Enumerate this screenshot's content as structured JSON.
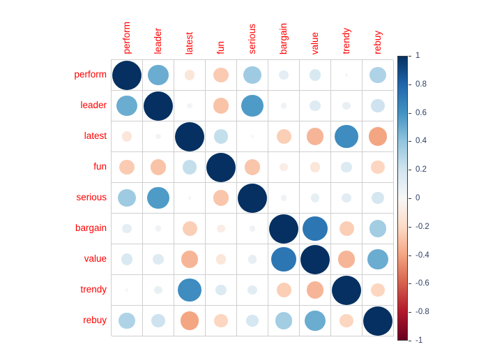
{
  "chart_data": {
    "type": "heatmap",
    "subtype": "correlation-matrix-circles",
    "title": "",
    "variables": [
      "perform",
      "leader",
      "latest",
      "fun",
      "serious",
      "bargain",
      "value",
      "trendy",
      "rebuy"
    ],
    "matrix": [
      [
        1.0,
        0.5,
        -0.12,
        -0.26,
        0.36,
        0.1,
        0.16,
        -0.01,
        0.31
      ],
      [
        0.5,
        1.0,
        0.03,
        -0.29,
        0.57,
        0.04,
        0.13,
        0.08,
        0.21
      ],
      [
        -0.12,
        0.03,
        1.0,
        0.24,
        -0.01,
        -0.25,
        -0.34,
        0.63,
        -0.4
      ],
      [
        -0.26,
        -0.29,
        0.24,
        1.0,
        -0.28,
        -0.07,
        -0.12,
        0.14,
        -0.22
      ],
      [
        0.36,
        0.57,
        -0.01,
        -0.28,
        1.0,
        0.04,
        0.09,
        0.11,
        0.18
      ],
      [
        0.1,
        0.04,
        -0.25,
        -0.07,
        0.04,
        1.0,
        0.73,
        -0.25,
        0.35
      ],
      [
        0.16,
        0.13,
        -0.34,
        -0.12,
        0.09,
        0.73,
        1.0,
        -0.34,
        0.5
      ],
      [
        -0.01,
        0.08,
        0.63,
        0.14,
        0.11,
        -0.25,
        -0.34,
        1.0,
        -0.22
      ],
      [
        0.31,
        0.21,
        -0.4,
        -0.22,
        0.18,
        0.35,
        0.5,
        -0.22,
        1.0
      ]
    ],
    "encoding": "circle area proportional to |r|, color mapped on RdBu diverging scale",
    "legend": {
      "position": "right",
      "min": -1,
      "max": 1,
      "ticks": [
        "1",
        "0.8",
        "0.6",
        "0.4",
        "0.2",
        "0",
        "-0.2",
        "-0.4",
        "-0.6",
        "-0.8",
        "-1"
      ]
    },
    "palette_neg_to_pos": [
      "#67001F",
      "#B2182B",
      "#D6604D",
      "#F4A582",
      "#FDDBC7",
      "#F7F7F7",
      "#D1E5F0",
      "#92C5DE",
      "#4393C3",
      "#2166AC",
      "#053061"
    ],
    "colors": {
      "label_text": "#ff0000",
      "legend_tick_text": "#2f3f66",
      "grid_line": "#cfcfcf",
      "background": "#ffffff"
    },
    "grid": true
  }
}
